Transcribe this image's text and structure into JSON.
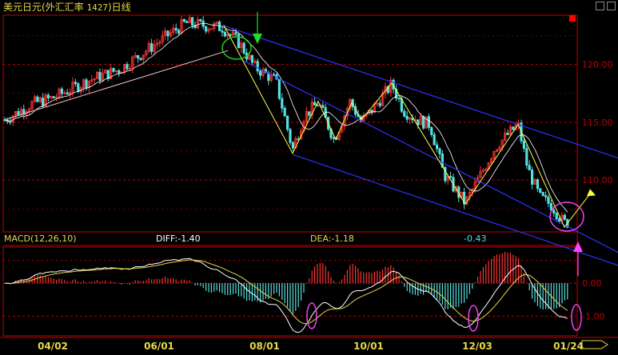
{
  "header": {
    "title_prefix": "美元日元(外汇汇率 ",
    "code": "1427",
    "title_suffix": ")日线"
  },
  "macd": {
    "label": "MACD(12,26,10)",
    "diff": "DIFF:-1.40",
    "dea": "DEA:-1.18",
    "macd_value": "-0.43"
  },
  "colors": {
    "up": "#ff3333",
    "down": "#55e0e0",
    "ma": "#ffffff",
    "channel": "#3030ff",
    "trend": "#ffff44",
    "support": "#ffc0cb",
    "grid": "#c00000",
    "axis_label": "#c00000",
    "ellipse_green": "#22cc22",
    "ellipse_magenta": "#ee44ee",
    "arrow_green": "#22dd22",
    "arrow_magenta": "#ff44ff"
  },
  "chart_data": [
    {
      "type": "candlestick",
      "title": "美元日元(外汇汇率 1427)日线",
      "x_ticks": [
        "04/02",
        "06/01",
        "08/01",
        "10/01",
        "12/03",
        "01/24"
      ],
      "y_ticks": [
        "120.00",
        "115.00",
        "110.00"
      ],
      "ylim": [
        105.5,
        124.2
      ],
      "grid": true,
      "approx_close_path": [
        {
          "x": "start",
          "y": 115.2
        },
        {
          "x": "04/02",
          "y": 117.0
        },
        {
          "x": "06/01",
          "y": 123.5
        },
        {
          "x": "peak",
          "y": 123.7
        },
        {
          "x": "08/01",
          "y": 118.5
        },
        {
          "x": "swing-low",
          "y": 112.3
        },
        {
          "x": "swing-high",
          "y": 116.5
        },
        {
          "x": "10/01",
          "y": 117.8
        },
        {
          "x": "11/01",
          "y": 118.3
        },
        {
          "x": "12/03",
          "y": 108.0
        },
        {
          "x": "swing-high",
          "y": 114.7
        },
        {
          "x": "01/24",
          "y": 106.2
        }
      ],
      "overlays": [
        "downtrend channel (blue)",
        "zigzag wave lines (yellow)",
        "rising support line (pink)",
        "moving average (white)"
      ]
    },
    {
      "type": "bar",
      "title": "MACD(12,26,10)",
      "series": [
        {
          "name": "DIFF",
          "last": -1.4
        },
        {
          "name": "DEA",
          "last": -1.18
        },
        {
          "name": "MACD",
          "last": -0.43
        }
      ],
      "y_ticks": [
        "0.00",
        "-1.00"
      ],
      "ylim": [
        -1.6,
        1.1
      ]
    }
  ]
}
